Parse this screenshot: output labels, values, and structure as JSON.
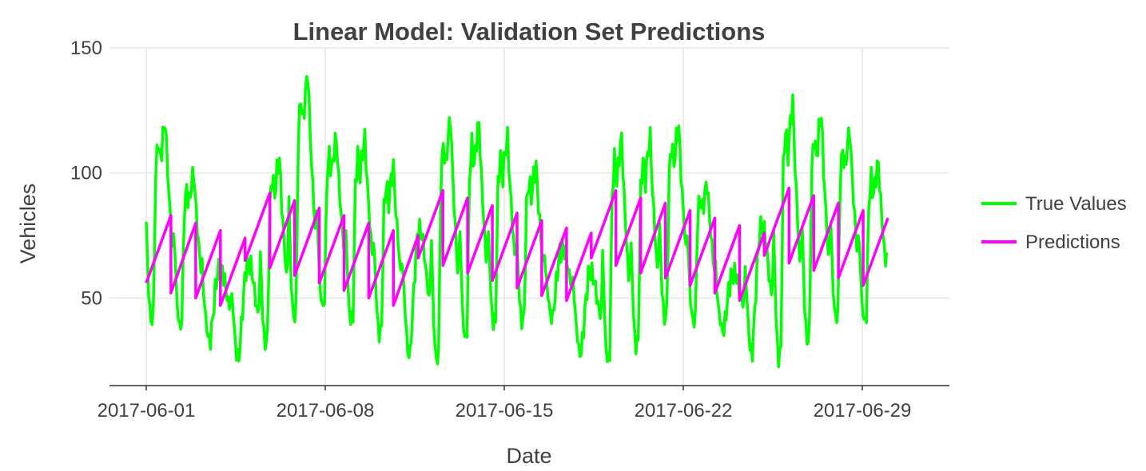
{
  "chart_data": {
    "type": "line",
    "title": "Linear Model: Validation Set Predictions",
    "xlabel": "Date",
    "ylabel": "Vehicles",
    "x_ticks": [
      "2017-06-01",
      "2017-06-08",
      "2017-06-15",
      "2017-06-22",
      "2017-06-29"
    ],
    "x_range": [
      "2017-06-01",
      "2017-06-30"
    ],
    "y_ticks": [
      50,
      100,
      150
    ],
    "ylim": [
      15,
      150
    ],
    "grid": true,
    "legend_position": "right",
    "series": [
      {
        "name": "True Values",
        "color": "#00ff00",
        "daily_profile": {
          "hours": [
            0,
            2,
            4,
            6,
            8,
            10,
            12,
            14,
            16,
            18,
            20,
            22,
            24
          ],
          "weekday_values": [
            80,
            52,
            40,
            44,
            100,
            112,
            104,
            114,
            120,
            100,
            84,
            70,
            80
          ],
          "weekend_values": [
            80,
            60,
            44,
            42,
            60,
            80,
            95,
            98,
            96,
            88,
            76,
            68,
            80
          ]
        },
        "daily_peaks": [
          121,
          100,
          62,
          64,
          106,
          140,
          114,
          114,
          102,
          77,
          122,
          120,
          114,
          103,
          70,
          60,
          114,
          114,
          119,
          96,
          60,
          79,
          128,
          124,
          117,
          104
        ],
        "daily_troughs": [
          40,
          38,
          33,
          26,
          31,
          41,
          46,
          40,
          35,
          27,
          24,
          33,
          39,
          40,
          42,
          28,
          24,
          30,
          41,
          40,
          37,
          28,
          25,
          32,
          41,
          40
        ]
      },
      {
        "name": "Predictions",
        "color": "#ff00ff",
        "daily_segments": [
          {
            "start": 56,
            "end": 83
          },
          {
            "start": 52,
            "end": 80
          },
          {
            "start": 50,
            "end": 77
          },
          {
            "start": 47,
            "end": 74
          },
          {
            "start": 65,
            "end": 92
          },
          {
            "start": 62,
            "end": 89
          },
          {
            "start": 59,
            "end": 86
          },
          {
            "start": 56,
            "end": 83
          },
          {
            "start": 53,
            "end": 80
          },
          {
            "start": 50,
            "end": 77
          },
          {
            "start": 47,
            "end": 75
          },
          {
            "start": 66,
            "end": 93
          },
          {
            "start": 63,
            "end": 90
          },
          {
            "start": 60,
            "end": 87
          },
          {
            "start": 57,
            "end": 84
          },
          {
            "start": 54,
            "end": 81
          },
          {
            "start": 51,
            "end": 78
          },
          {
            "start": 49,
            "end": 76
          },
          {
            "start": 66,
            "end": 93
          },
          {
            "start": 63,
            "end": 90
          },
          {
            "start": 60,
            "end": 88
          },
          {
            "start": 58,
            "end": 85
          },
          {
            "start": 55,
            "end": 82
          },
          {
            "start": 52,
            "end": 79
          },
          {
            "start": 49,
            "end": 76
          },
          {
            "start": 67,
            "end": 94
          },
          {
            "start": 64,
            "end": 91
          },
          {
            "start": 61,
            "end": 88
          },
          {
            "start": 58,
            "end": 85
          },
          {
            "start": 55,
            "end": 82
          }
        ]
      }
    ]
  }
}
